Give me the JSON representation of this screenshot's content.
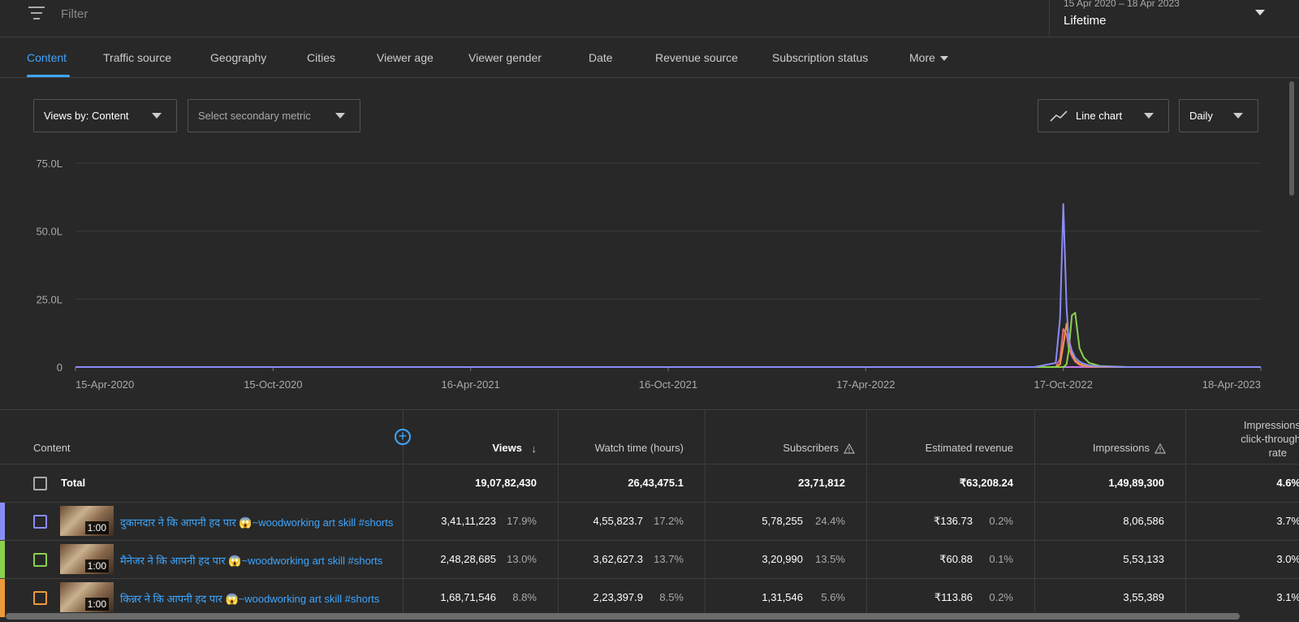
{
  "filter": {
    "placeholder": "Filter",
    "icon": "filter-icon"
  },
  "date_range": {
    "range": "15 Apr 2020 – 18 Apr 2023",
    "label": "Lifetime"
  },
  "tabs": [
    {
      "label": "Content",
      "active": true
    },
    {
      "label": "Traffic source"
    },
    {
      "label": "Geography"
    },
    {
      "label": "Cities"
    },
    {
      "label": "Viewer age"
    },
    {
      "label": "Viewer gender"
    },
    {
      "label": "Date"
    },
    {
      "label": "Revenue source"
    },
    {
      "label": "Subscription status"
    },
    {
      "label": "More"
    }
  ],
  "controls": {
    "primary_metric": "Views by: Content",
    "secondary_metric": "Select secondary metric",
    "chart_type": "Line chart",
    "granularity": "Daily"
  },
  "chart_data": {
    "type": "line",
    "ylim": [
      0,
      7500000
    ],
    "yticks": [
      "75.0L",
      "50.0L",
      "25.0L",
      "0"
    ],
    "xticks": [
      "15-Apr-2020",
      "15-Oct-2020",
      "16-Apr-2021",
      "16-Oct-2021",
      "17-Apr-2022",
      "17-Oct-2022",
      "18-Apr-2023"
    ],
    "x": [
      "2020-04-15",
      "2022-09-20",
      "2022-10-10",
      "2022-10-14",
      "2022-10-17",
      "2022-10-20",
      "2022-10-22",
      "2022-10-25",
      "2022-10-28",
      "2022-11-01",
      "2022-11-05",
      "2022-11-10",
      "2022-11-20",
      "2022-12-15",
      "2023-04-18"
    ],
    "series": [
      {
        "color": "#8a8cf6",
        "values": [
          0,
          0,
          150000,
          1800000,
          6000000,
          2200000,
          1000000,
          600000,
          350000,
          200000,
          120000,
          60000,
          20000,
          0,
          0
        ]
      },
      {
        "color": "#8ad04d",
        "values": [
          0,
          0,
          0,
          0,
          0,
          100000,
          600000,
          1900000,
          2000000,
          700000,
          350000,
          150000,
          40000,
          0,
          0
        ]
      },
      {
        "color": "#ec9a3a",
        "values": [
          0,
          0,
          0,
          100000,
          800000,
          1600000,
          1100000,
          500000,
          250000,
          120000,
          60000,
          30000,
          10000,
          0,
          0
        ]
      },
      {
        "color": "#e06b88",
        "values": [
          0,
          0,
          0,
          300000,
          1400000,
          1200000,
          700000,
          400000,
          200000,
          80000,
          40000,
          20000,
          0,
          0,
          0
        ]
      },
      {
        "color": "#c27ae8",
        "values": [
          0,
          0,
          0,
          0,
          0,
          0,
          0,
          0,
          0,
          0,
          0,
          0,
          0,
          0,
          0
        ]
      }
    ]
  },
  "table": {
    "headers": {
      "content": "Content",
      "views": "Views",
      "watch_time": "Watch time (hours)",
      "subscribers": "Subscribers",
      "revenue": "Estimated revenue",
      "impressions": "Impressions",
      "ctr_line1": "Impressions",
      "ctr_line2": "click-through",
      "ctr_line3": "rate"
    },
    "total": {
      "label": "Total",
      "views": "19,07,82,430",
      "watch_time": "26,43,475.1",
      "subscribers": "23,71,812",
      "revenue": "₹63,208.24",
      "impressions": "1,49,89,300",
      "ctr": "4.6%"
    },
    "rows": [
      {
        "color": "#8a8cf6",
        "duration": "1:00",
        "title": "दुकानदार ने कि आपनी हद पार 😱~woodworking art skill #shorts",
        "views": "3,41,11,223",
        "views_pct": "17.9%",
        "watch_time": "4,55,823.7",
        "watch_pct": "17.2%",
        "subscribers": "5,78,255",
        "subs_pct": "24.4%",
        "revenue": "₹136.73",
        "rev_pct": "0.2%",
        "impressions": "8,06,586",
        "ctr": "3.7%"
      },
      {
        "color": "#8ad04d",
        "duration": "1:00",
        "title": "मैनेजर ने कि आपनी हद पार 😱~woodworking art skill #shorts",
        "views": "2,48,28,685",
        "views_pct": "13.0%",
        "watch_time": "3,62,627.3",
        "watch_pct": "13.7%",
        "subscribers": "3,20,990",
        "subs_pct": "13.5%",
        "revenue": "₹60.88",
        "rev_pct": "0.1%",
        "impressions": "5,53,133",
        "ctr": "3.0%"
      },
      {
        "color": "#ec9a3a",
        "duration": "1:00",
        "title": "किन्नर ने कि आपनी हद पार 😱~woodworking art skill #shorts",
        "views": "1,68,71,546",
        "views_pct": "8.8%",
        "watch_time": "2,23,397.9",
        "watch_pct": "8.5%",
        "subscribers": "1,31,546",
        "subs_pct": "5.6%",
        "revenue": "₹113.86",
        "rev_pct": "0.2%",
        "impressions": "3,55,389",
        "ctr": "3.1%"
      }
    ]
  }
}
